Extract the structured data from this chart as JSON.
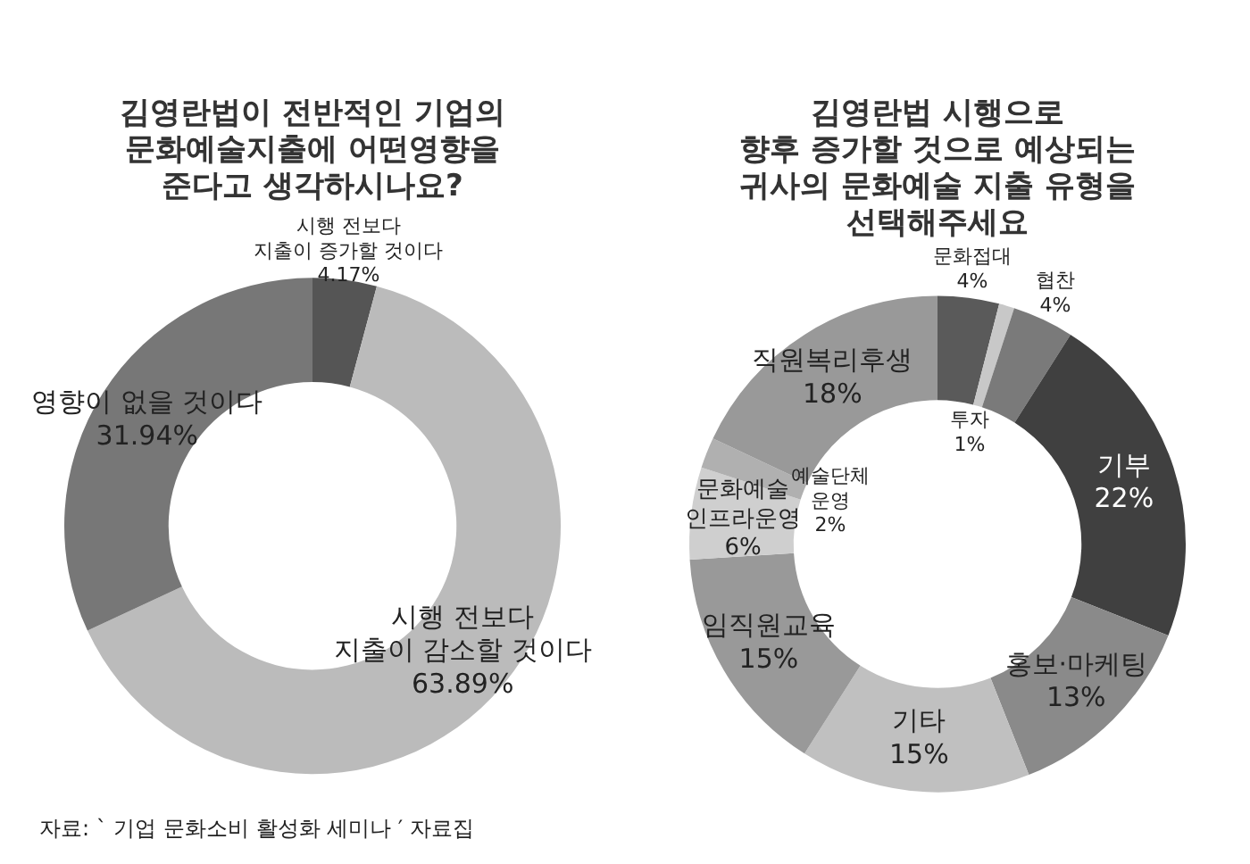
{
  "chart_data": [
    {
      "type": "donut",
      "title": "김영란법이 전반적인 기업의\n문화예술지출에 어떤영향을\n준다고 생각하시나요?",
      "categories": [
        "시행 전보다\n지출이 증가할 것이다",
        "시행 전보다\n지출이 감소할 것이다",
        "영향이 없을 것이다"
      ],
      "values": [
        4.17,
        63.89,
        31.94
      ],
      "colors": [
        "#555555",
        "#bbbbbb",
        "#777777"
      ],
      "value_labels": [
        "4.17%",
        "63.89%",
        "31.94%"
      ],
      "legend": false,
      "annotations": [
        "자료: ` 기업 문화소비 활성화 세미나 ′ 자료집"
      ]
    },
    {
      "type": "donut",
      "title": "김영란법 시행으로\n향후 증가할 것으로 예상되는\n귀사의 문화예술 지출 유형을\n선택해주세요",
      "categories": [
        "문화접대",
        "투자",
        "협찬",
        "기부",
        "홍보·마케팅",
        "기타",
        "임직원교육",
        "문화예술\n인프라운영",
        "예술단체\n운영",
        "직원복리후생"
      ],
      "values": [
        4,
        1,
        4,
        22,
        13,
        15,
        15,
        6,
        2,
        18
      ],
      "colors": [
        "#5a5a5a",
        "#c8c8c8",
        "#7a7a7a",
        "#404040",
        "#8a8a8a",
        "#c0c0c0",
        "#999999",
        "#cfcfcf",
        "#b0b0b0",
        "#999999"
      ],
      "value_labels": [
        "4%",
        "1%",
        "4%",
        "22%",
        "13%",
        "15%",
        "15%",
        "6%",
        "2%",
        "18%"
      ],
      "legend": false
    }
  ]
}
